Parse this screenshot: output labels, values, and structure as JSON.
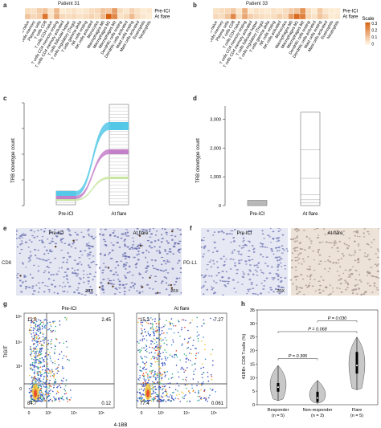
{
  "panel_letters": {
    "a": "a",
    "b": "b",
    "c": "c",
    "d": "d",
    "e": "e",
    "f": "f",
    "g": "g",
    "h": "h"
  },
  "heatmap_a": {
    "title": "Patient 31",
    "rows": [
      "Pre-ICI",
      "At flare"
    ],
    "cells": [
      "B cells naive",
      "B cells memory",
      "Plasma cells",
      "T cells CD8",
      "T cells CD4 naive",
      "T cells CD4 memory resting",
      "T cells CD4 memory activated",
      "T cells follicular helper",
      "T cells regulatory (Tregs)",
      "T cells gamma delta",
      "NK cells resting",
      "NK cells activated",
      "Monocytes",
      "Macrophages M0",
      "Macrophages M1",
      "Macrophages M2",
      "Dendritic cells resting",
      "Dendritic cells activated",
      "Mast cells resting",
      "Mast cells activated",
      "Eosinophils",
      "Neutrophils"
    ],
    "pre": [
      0.05,
      0.04,
      0.08,
      0.1,
      0.03,
      0.12,
      0.02,
      0.03,
      0.04,
      0.02,
      0.03,
      0.05,
      0.06,
      0.1,
      0.09,
      0.18,
      0.05,
      0.03,
      0.07,
      0.04,
      0.02,
      0.03
    ],
    "flare": [
      0.1,
      0.06,
      0.08,
      0.26,
      0.04,
      0.14,
      0.06,
      0.05,
      0.06,
      0.04,
      0.05,
      0.07,
      0.05,
      0.12,
      0.3,
      0.22,
      0.04,
      0.06,
      0.12,
      0.05,
      0.03,
      0.02
    ]
  },
  "heatmap_b": {
    "title": "Patient 33",
    "rows": [
      "Pre-ICI",
      "At flare"
    ],
    "cells": [
      "B cells naive",
      "B cells memory",
      "Plasma cells",
      "T cells CD8",
      "T cells CD4 naive",
      "T cells CD4 memory resting",
      "T cells CD4 memory activated",
      "T cells follicular helper",
      "T cells regulatory (Tregs)",
      "T cells gamma delta",
      "NK cells resting",
      "NK cells activated",
      "Monocytes",
      "Macrophages M0",
      "Macrophages M1",
      "Macrophages M2",
      "Dendritic cells resting",
      "Dendritic cells activated",
      "Mast cells resting",
      "Mast cells activated",
      "Eosinophils",
      "Neutrophils"
    ],
    "pre": [
      0.04,
      0.05,
      0.06,
      0.09,
      0.03,
      0.14,
      0.02,
      0.04,
      0.03,
      0.02,
      0.04,
      0.03,
      0.05,
      0.08,
      0.1,
      0.2,
      0.05,
      0.02,
      0.09,
      0.03,
      0.02,
      0.02
    ],
    "flare": [
      0.06,
      0.05,
      0.1,
      0.22,
      0.05,
      0.16,
      0.08,
      0.06,
      0.05,
      0.04,
      0.05,
      0.08,
      0.06,
      0.18,
      0.28,
      0.24,
      0.06,
      0.04,
      0.1,
      0.06,
      0.02,
      0.03
    ],
    "scale_title": "Scale",
    "scale_ticks": [
      "0.3",
      "0.2",
      "0.1",
      "0"
    ]
  },
  "panel_c": {
    "ylabel": "TRB clonotype count",
    "xticks": [
      "Pre-ICI",
      "At flare"
    ]
  },
  "panel_d": {
    "ylabel": "TRB clonotype count",
    "yticks": [
      "0",
      "1,000",
      "2,000",
      "3,000"
    ],
    "xticks": [
      "Pre-ICI",
      "At flare"
    ]
  },
  "panel_e": {
    "marker": "CD8",
    "left_title": "Pre-ICI",
    "right_title": "At flare",
    "mag_left": "20X",
    "mag_right": "20X"
  },
  "panel_f": {
    "marker": "PD-L1",
    "left_title": "Pre-ICI",
    "right_title": "At flare",
    "mag_left": "20X"
  },
  "panel_g": {
    "left_title": "Pre-ICI",
    "right_title": "At flare",
    "ylabel": "TIGIT",
    "xlabel": "4-1BB",
    "left_quadrants": {
      "ul": "12.8",
      "ur": "2.45",
      "ll": "84.7",
      "lr": "0.12"
    },
    "right_quadrants": {
      "ul": "15.2",
      "ur": "7.27",
      "ll": "77.4",
      "lr": "0.061"
    },
    "yticks": [
      "10⁵",
      "10⁴",
      "10³",
      "0"
    ],
    "xticks": [
      "0",
      "10³",
      "10⁴",
      "10⁵"
    ]
  },
  "chart_data": {
    "type": "violin",
    "title": "",
    "ylabel": "41BB+ CD8 T-cells (%)",
    "ylim": [
      0,
      35
    ],
    "yticks": [
      0,
      5,
      10,
      15,
      20,
      25,
      30,
      35
    ],
    "categories": [
      "Responder",
      "Non-responder",
      "Flare"
    ],
    "n_labels": [
      "(n = 5)",
      "(n = 3)",
      "(n = 5)"
    ],
    "violins": [
      {
        "name": "Responder",
        "min": 1.5,
        "max": 14.5,
        "q1": 4.8,
        "median": 6.5,
        "q3": 8.0,
        "color": "#c8c8c8"
      },
      {
        "name": "Non-responder",
        "min": 0.5,
        "max": 9.0,
        "q1": 1.0,
        "median": 2.5,
        "q3": 4.8,
        "color": "#c8c8c8"
      },
      {
        "name": "Flare",
        "min": 5.5,
        "max": 25.0,
        "q1": 11.5,
        "median": 14.5,
        "q3": 19.5,
        "color": "#c8c8c8"
      }
    ],
    "pvalues": [
      {
        "from": "Responder",
        "to": "Non-responder",
        "label": "P = 0.395",
        "y": 17
      },
      {
        "from": "Responder",
        "to": "Flare",
        "label": "P = 0.068",
        "y": 27
      },
      {
        "from": "Non-responder",
        "to": "Flare",
        "label": "P = 0.030",
        "y": 31
      }
    ]
  }
}
